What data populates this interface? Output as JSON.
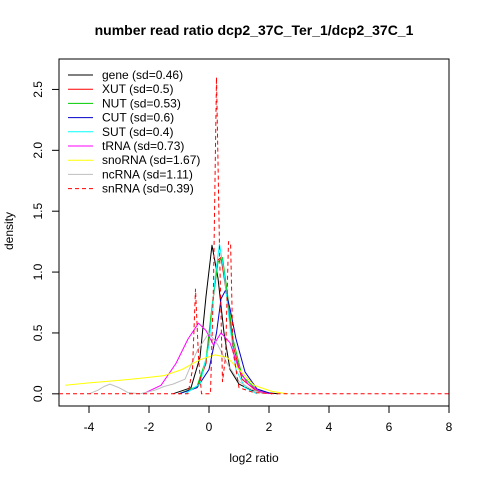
{
  "chart_data": {
    "type": "line",
    "title": "number read ratio dcp2_37C_Ter_1/dcp2_37C_1",
    "xlabel": "log2 ratio",
    "ylabel": "density",
    "xlim": [
      -5.0,
      8.0
    ],
    "ylim": [
      -0.1,
      2.75
    ],
    "xticks": [
      -4,
      -2,
      0,
      2,
      4,
      6,
      8
    ],
    "yticks": [
      0.0,
      0.5,
      1.0,
      1.5,
      2.0,
      2.5
    ],
    "grid": false,
    "legend_position": "top-left",
    "series": [
      {
        "name": "gene (sd=0.46)",
        "color": "#000000",
        "dash": false,
        "x": [
          -1.2,
          -0.6,
          -0.3,
          -0.1,
          0.1,
          0.3,
          0.5,
          0.7,
          1.0,
          1.4,
          1.9,
          2.3
        ],
        "y": [
          0.0,
          0.05,
          0.3,
          0.8,
          1.22,
          0.95,
          0.5,
          0.2,
          0.08,
          0.03,
          0.01,
          0.0
        ]
      },
      {
        "name": "XUT (sd=0.5)",
        "color": "#ff0000",
        "dash": false,
        "x": [
          -1.0,
          -0.4,
          -0.1,
          0.1,
          0.3,
          0.4,
          0.6,
          0.8,
          1.1,
          1.6,
          2.1
        ],
        "y": [
          0.0,
          0.05,
          0.25,
          0.7,
          1.1,
          1.12,
          0.8,
          0.4,
          0.12,
          0.02,
          0.0
        ]
      },
      {
        "name": "NUT (sd=0.53)",
        "color": "#00cc00",
        "dash": false,
        "x": [
          -1.0,
          -0.4,
          -0.1,
          0.1,
          0.3,
          0.45,
          0.6,
          0.8,
          1.1,
          1.6,
          2.1
        ],
        "y": [
          0.0,
          0.06,
          0.28,
          0.72,
          1.08,
          1.12,
          0.85,
          0.45,
          0.15,
          0.03,
          0.0
        ]
      },
      {
        "name": "CUT (sd=0.6)",
        "color": "#0000cc",
        "dash": false,
        "x": [
          -1.0,
          -0.4,
          0.0,
          0.25,
          0.4,
          0.55,
          0.7,
          0.9,
          1.2,
          1.6,
          2.1
        ],
        "y": [
          0.0,
          0.05,
          0.2,
          0.5,
          0.78,
          0.85,
          0.7,
          0.45,
          0.18,
          0.04,
          0.0
        ]
      },
      {
        "name": "SUT (sd=0.4)",
        "color": "#00ffff",
        "dash": false,
        "x": [
          -0.8,
          -0.3,
          0.0,
          0.2,
          0.35,
          0.5,
          0.7,
          0.9,
          1.2,
          1.6
        ],
        "y": [
          0.0,
          0.08,
          0.4,
          0.95,
          1.23,
          1.0,
          0.55,
          0.2,
          0.05,
          0.0
        ]
      },
      {
        "name": "tRNA (sd=0.73)",
        "color": "#ff00ff",
        "dash": false,
        "x": [
          -2.2,
          -1.6,
          -1.1,
          -0.7,
          -0.35,
          -0.1,
          0.15,
          0.4,
          0.7,
          1.0,
          1.3,
          1.7,
          2.0
        ],
        "y": [
          0.0,
          0.07,
          0.25,
          0.45,
          0.58,
          0.52,
          0.4,
          0.5,
          0.42,
          0.2,
          0.08,
          0.02,
          0.0
        ]
      },
      {
        "name": "snoRNA (sd=1.67)",
        "color": "#ffff00",
        "dash": false,
        "x": [
          -4.8,
          -4.0,
          -3.0,
          -2.2,
          -1.5,
          -0.9,
          -0.3,
          0.2,
          0.6,
          1.0,
          1.5,
          2.1,
          2.6
        ],
        "y": [
          0.07,
          0.09,
          0.11,
          0.13,
          0.15,
          0.2,
          0.28,
          0.32,
          0.3,
          0.2,
          0.07,
          0.02,
          0.0
        ]
      },
      {
        "name": "ncRNA (sd=1.11)",
        "color": "#bebebe",
        "dash": false,
        "x": [
          -4.0,
          -3.7,
          -3.5,
          -3.3,
          -3.0,
          -2.7,
          -2.3,
          -1.8,
          -1.5,
          -1.2,
          -0.8,
          -0.4,
          0.0,
          0.3,
          0.6,
          1.0,
          1.4,
          1.8
        ],
        "y": [
          0.0,
          0.03,
          0.06,
          0.08,
          0.05,
          0.01,
          0.0,
          0.03,
          0.06,
          0.08,
          0.12,
          0.35,
          0.5,
          0.4,
          0.25,
          0.1,
          0.04,
          0.0
        ]
      },
      {
        "name": "snRNA (sd=0.39)",
        "color": "#ff0000",
        "dash": true,
        "x": [
          -5.0,
          -0.7,
          -0.55,
          -0.45,
          -0.35,
          -0.25,
          0.05,
          0.15,
          0.25,
          0.35,
          0.45,
          0.55,
          0.65,
          0.72,
          0.8,
          1.0,
          1.5,
          2.2,
          8.0
        ],
        "y": [
          0.0,
          0.0,
          0.2,
          0.86,
          0.3,
          0.0,
          0.0,
          0.9,
          2.6,
          1.2,
          0.1,
          0.3,
          1.25,
          1.23,
          0.35,
          0.05,
          0.01,
          0.0,
          0.0
        ]
      }
    ]
  }
}
